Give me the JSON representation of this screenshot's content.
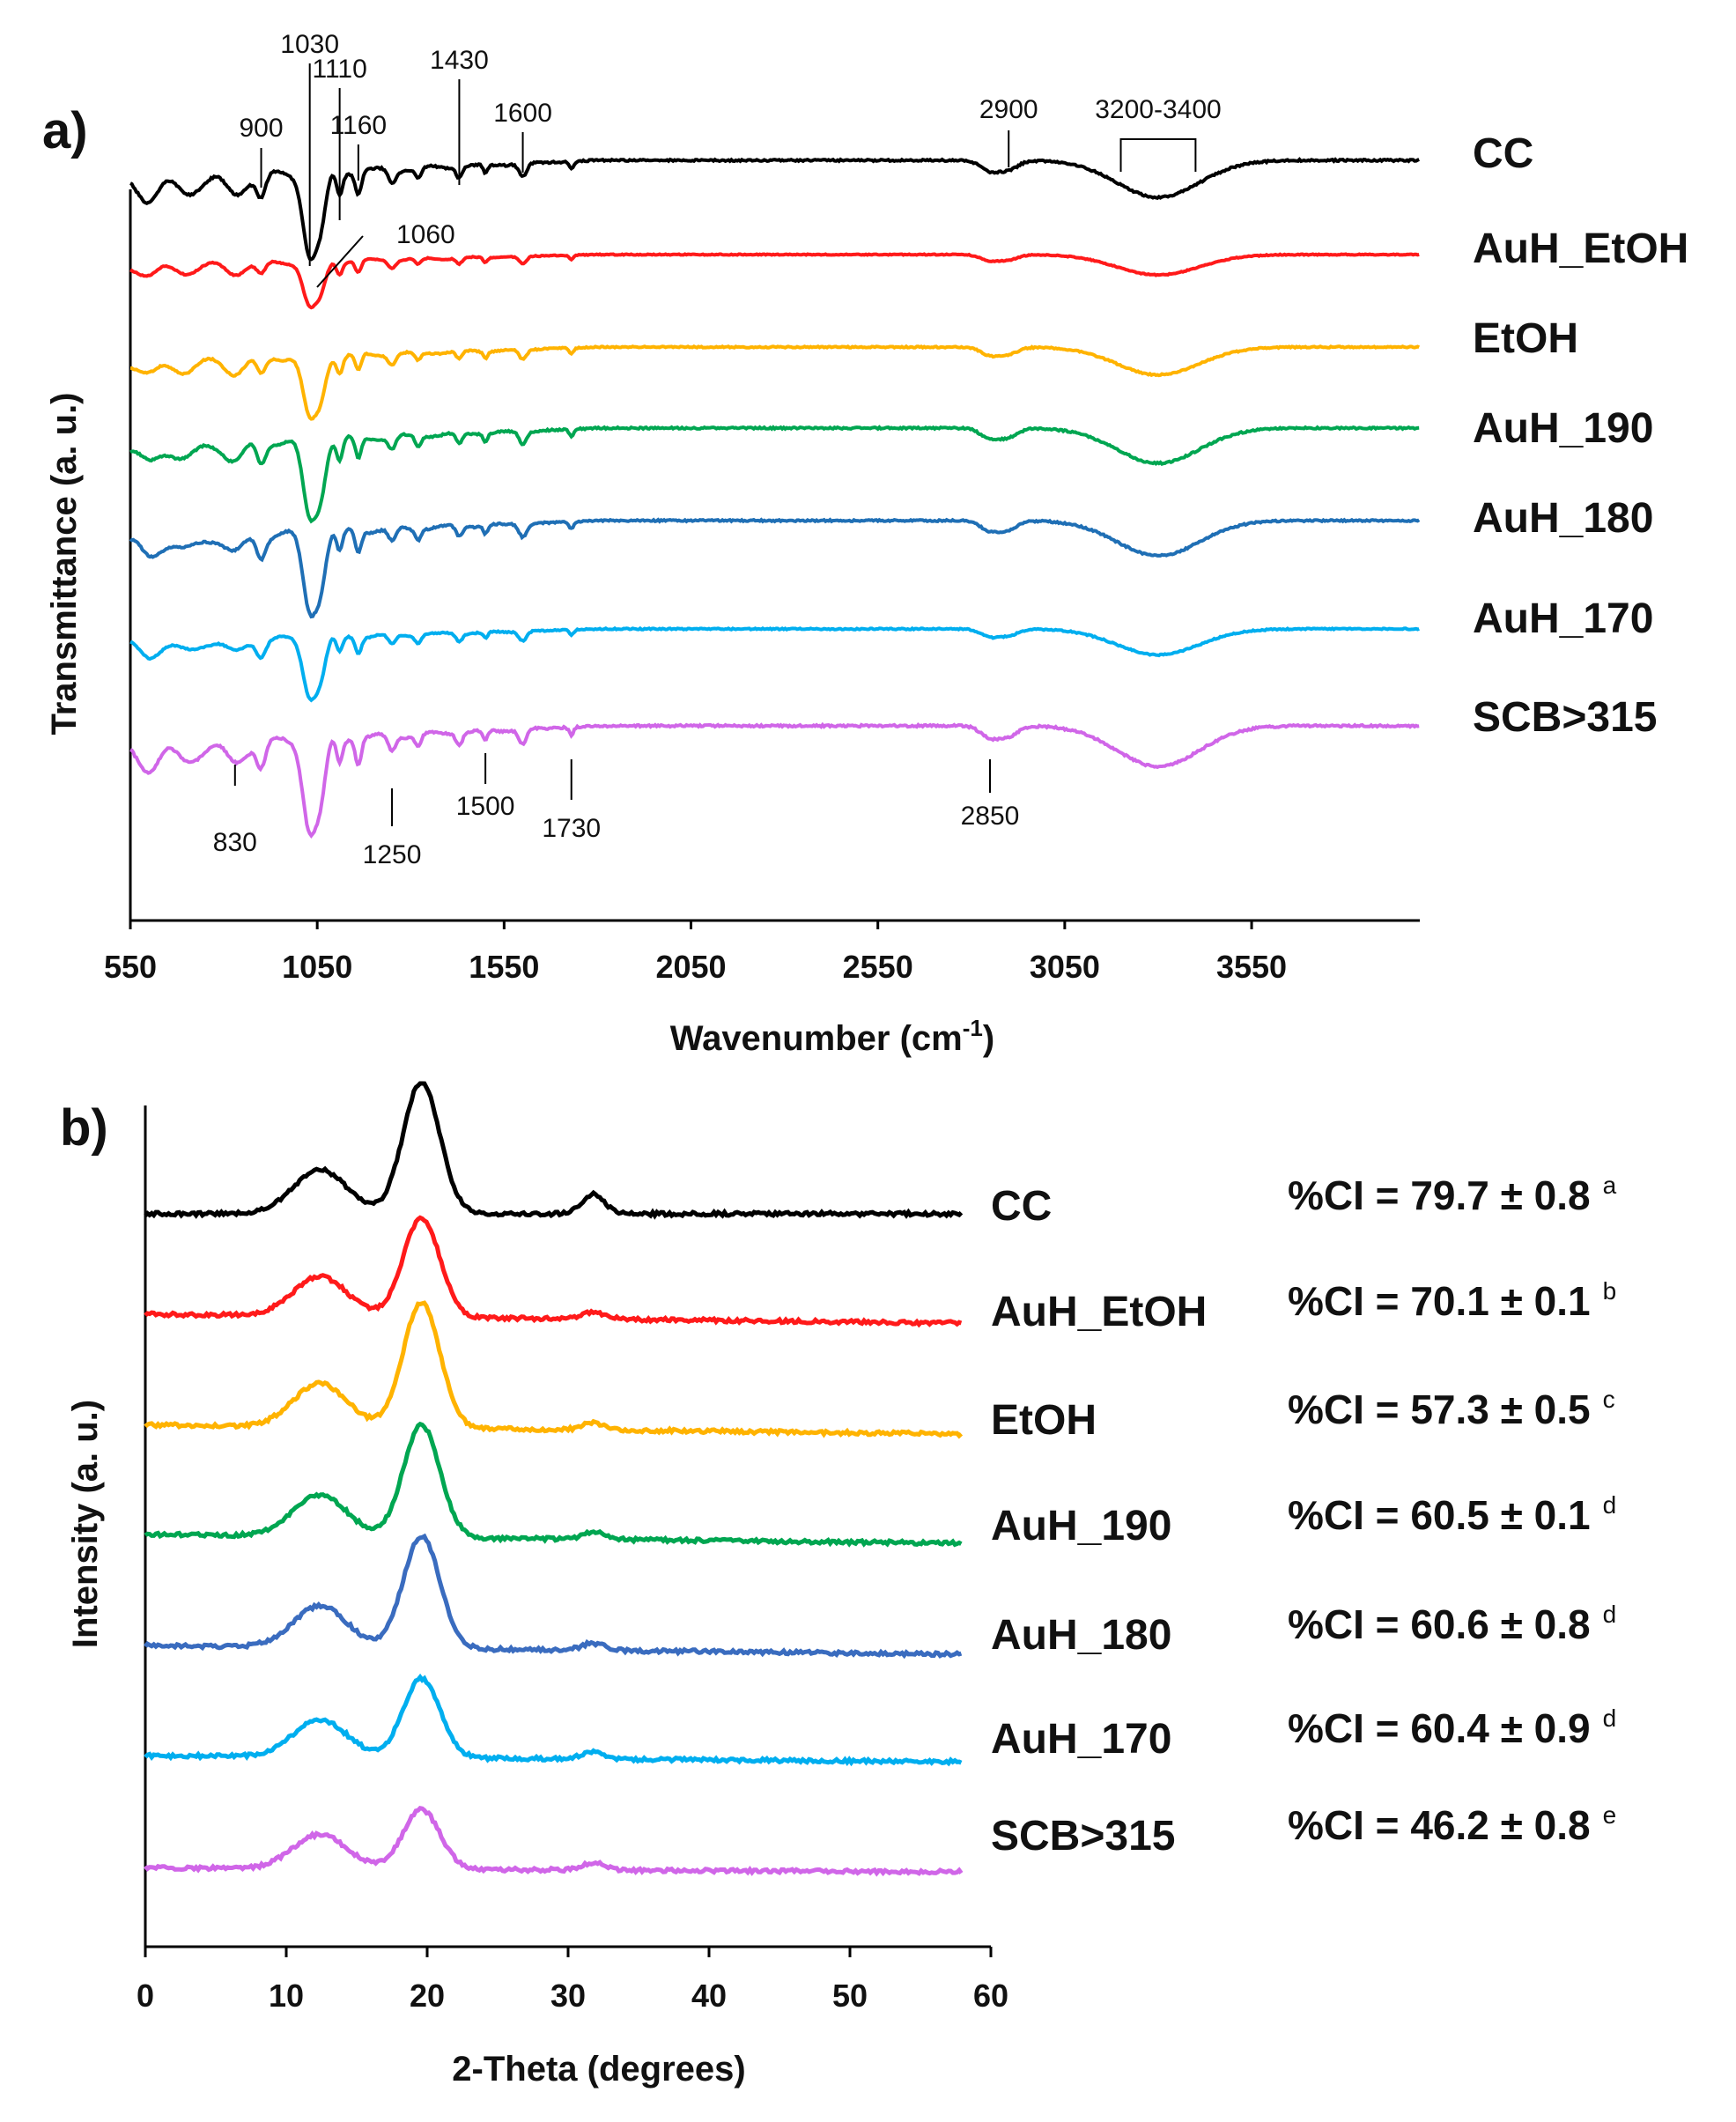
{
  "chart_data": [
    {
      "panel": "a)",
      "type": "line",
      "xlabel": "Wavenumber (cm",
      "xlabel_sup": "-1",
      "xlabel_close": ")",
      "ylabel": "Transmittance (a. u.)",
      "xlim": [
        550,
        4000
      ],
      "xticks": [
        "550",
        "1050",
        "1550",
        "2050",
        "2550",
        "3050",
        "3550"
      ],
      "grid": false,
      "series": [
        {
          "name": "CC",
          "color": "#000000",
          "baseline": 0,
          "scale": 1.0
        },
        {
          "name": "AuH_EtOH",
          "color": "#ff1a1a",
          "baseline": 1,
          "scale": 0.55
        },
        {
          "name": "EtOH",
          "color": "#ffb300",
          "baseline": 2,
          "scale": 0.75
        },
        {
          "name": "AuH_190",
          "color": "#00a651",
          "baseline": 3,
          "scale": 0.95
        },
        {
          "name": "AuH_180",
          "color": "#1f6fb5",
          "baseline": 4,
          "scale": 0.95
        },
        {
          "name": "AuH_170",
          "color": "#00aeef",
          "baseline": 5,
          "scale": 0.7
        },
        {
          "name": "SCB>315",
          "color": "#d066e8",
          "baseline": 6,
          "scale": 1.1
        }
      ],
      "annotations_top": [
        {
          "text": "900",
          "x": 900
        },
        {
          "text": "1030",
          "x": 1030
        },
        {
          "text": "1110",
          "x": 1110
        },
        {
          "text": "1160",
          "x": 1160
        },
        {
          "text": "1430",
          "x": 1430
        },
        {
          "text": "1600",
          "x": 1600
        },
        {
          "text": "1060",
          "x": 1060
        },
        {
          "text": "2900",
          "x": 2900
        },
        {
          "text": "3200-3400",
          "x_range": [
            3200,
            3400
          ]
        }
      ],
      "annotations_bottom": [
        {
          "text": "830",
          "x": 830
        },
        {
          "text": "1250",
          "x": 1250
        },
        {
          "text": "1500",
          "x": 1500
        },
        {
          "text": "1730",
          "x": 1730
        },
        {
          "text": "2850",
          "x": 2850
        }
      ]
    },
    {
      "panel": "b)",
      "type": "line",
      "xlabel": "2-Theta (degrees)",
      "ylabel": "Intensity (a. u.)",
      "xlim": [
        0,
        60
      ],
      "xticks": [
        "0",
        "10",
        "20",
        "30",
        "40",
        "50",
        "60"
      ],
      "grid": false,
      "series": [
        {
          "name": "CC",
          "color": "#000000",
          "ci": "%CI = 79.7 ± 0.8",
          "ci_sup": "a",
          "peak": 1.0
        },
        {
          "name": "AuH_EtOH",
          "color": "#ff1a1a",
          "ci": "%CI = 70.1 ± 0.1",
          "ci_sup": "b",
          "peak": 0.75
        },
        {
          "name": "EtOH",
          "color": "#ffb300",
          "ci": "%CI = 57.3 ± 0.5",
          "ci_sup": "c",
          "peak": 0.95
        },
        {
          "name": "AuH_190",
          "color": "#00a651",
          "ci": "%CI = 60.5 ± 0.1",
          "ci_sup": "d",
          "peak": 0.85
        },
        {
          "name": "AuH_180",
          "color": "#3a6cbf",
          "ci": "%CI = 60.6 ± 0.8",
          "ci_sup": "d",
          "peak": 0.85
        },
        {
          "name": "AuH_170",
          "color": "#00aeef",
          "ci": "%CI = 60.4 ± 0.9",
          "ci_sup": "d",
          "peak": 0.6
        },
        {
          "name": "SCB>315",
          "color": "#d066e8",
          "ci": "%CI = 46.2 ± 0.8",
          "ci_sup": "e",
          "peak": 0.45
        }
      ]
    }
  ]
}
